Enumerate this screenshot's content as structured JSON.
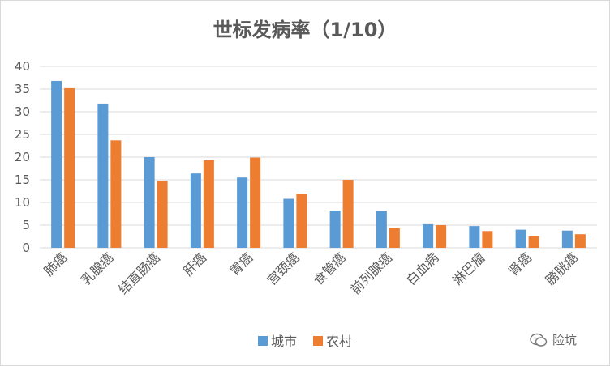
{
  "chart_data": {
    "type": "bar",
    "title": "世标发病率（1/10）",
    "categories": [
      "肺癌",
      "乳腺癌",
      "结直肠癌",
      "肝癌",
      "胃癌",
      "宫颈癌",
      "食管癌",
      "前列腺癌",
      "白血病",
      "淋巴瘤",
      "肾癌",
      "膀胱癌"
    ],
    "series": [
      {
        "name": "城市",
        "color": "#5b9bd5",
        "values": [
          36.8,
          31.8,
          20.0,
          16.4,
          15.5,
          10.8,
          8.2,
          8.2,
          5.2,
          4.8,
          4.0,
          3.8
        ]
      },
      {
        "name": "农村",
        "color": "#ed7d31",
        "values": [
          35.2,
          23.7,
          14.8,
          19.3,
          19.9,
          11.9,
          15.0,
          4.3,
          5.0,
          3.7,
          2.5,
          3.0
        ]
      }
    ],
    "ylim": [
      0,
      40
    ],
    "yticks": [
      0,
      5,
      10,
      15,
      20,
      25,
      30,
      35,
      40
    ],
    "xlabel": "",
    "ylabel": "",
    "grid": true,
    "legend_position": "bottom"
  },
  "watermark": {
    "text": "险坑",
    "icon": "wechat-icon"
  }
}
